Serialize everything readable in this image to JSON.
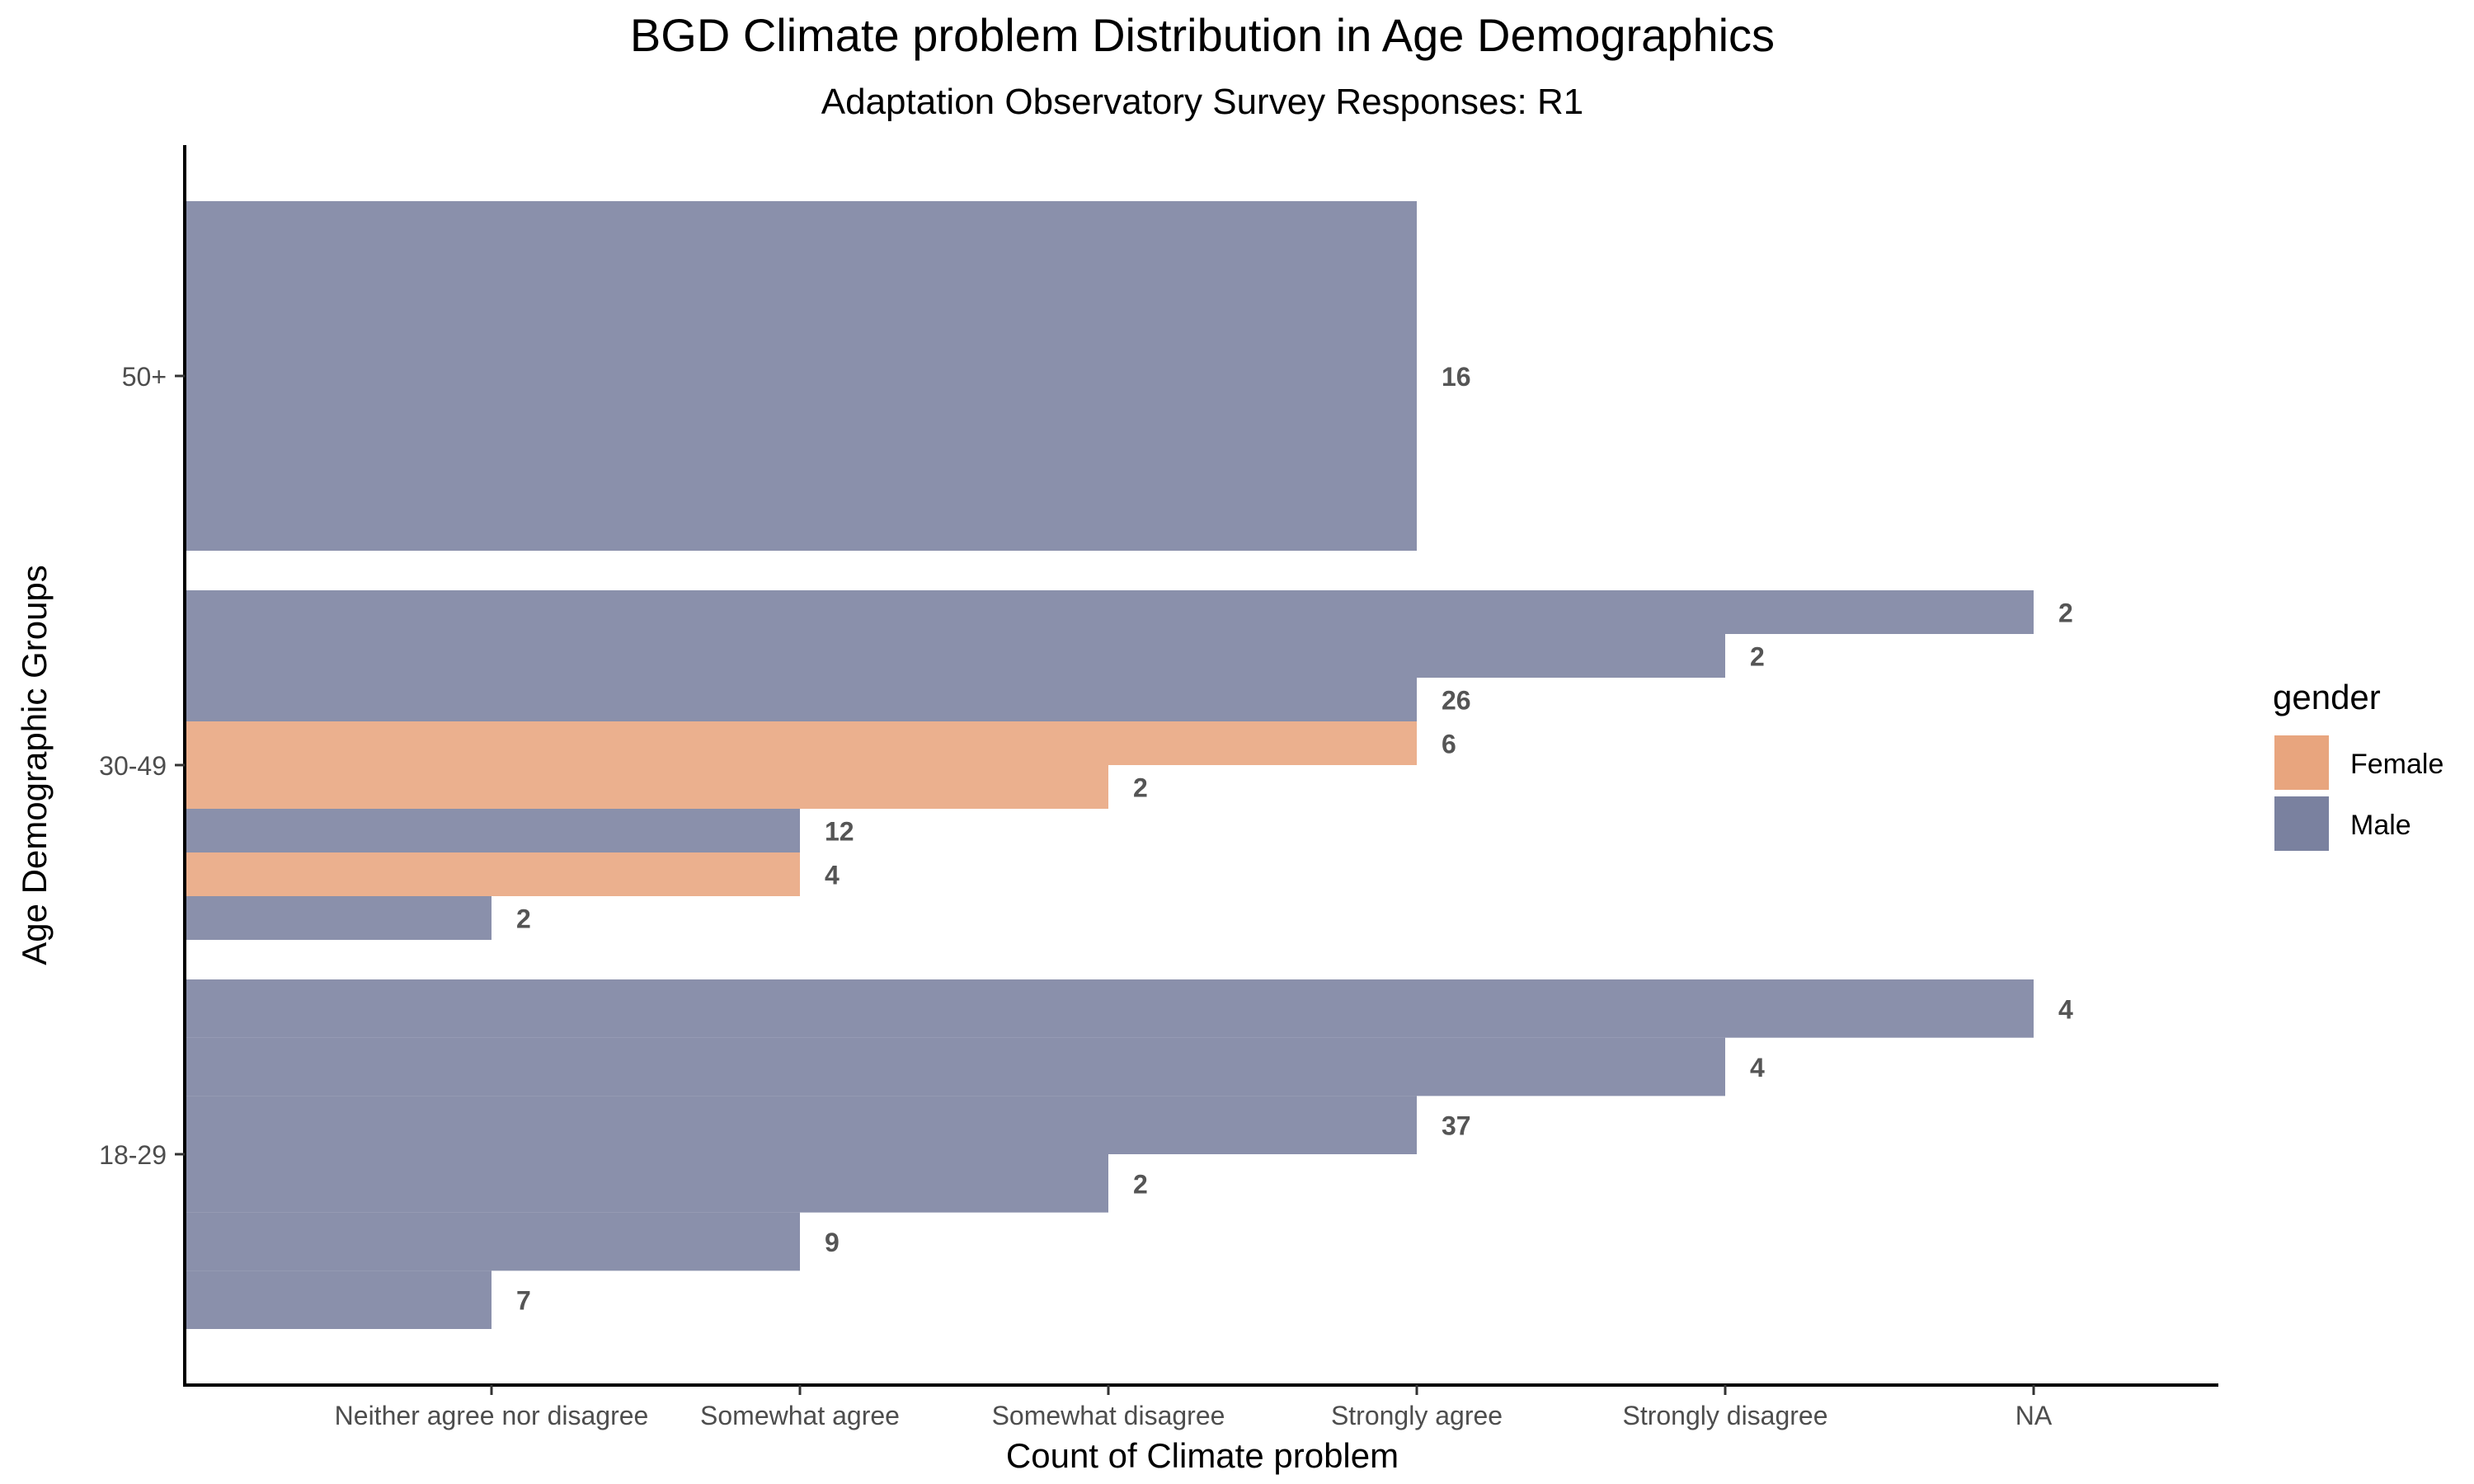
{
  "chart_data": {
    "type": "bar",
    "orientation": "horizontal",
    "title": "BGD Climate problem Distribution in Age Demographics",
    "subtitle": "Adaptation Observatory Survey Responses: R1",
    "xlabel": "Count of Climate problem",
    "ylabel": "Age Demographic Groups",
    "x_categories": [
      "Neither agree nor disagree",
      "Somewhat agree",
      "Somewhat disagree",
      "Strongly agree",
      "Strongly disagree",
      "NA"
    ],
    "y_categories": [
      "18-29",
      "30-49",
      "50+"
    ],
    "grid": false,
    "legend": {
      "title": "gender",
      "position": "right",
      "entries": [
        {
          "label": "Female",
          "color": "#E8A57E"
        },
        {
          "label": "Male",
          "color": "#7A819F"
        }
      ]
    },
    "bars": [
      {
        "group": "18-29",
        "gender": "Male",
        "response": "Neither agree nor disagree",
        "count": "7"
      },
      {
        "group": "18-29",
        "gender": "Male",
        "response": "Somewhat agree",
        "count": "9"
      },
      {
        "group": "18-29",
        "gender": "Male",
        "response": "Somewhat disagree",
        "count": "2"
      },
      {
        "group": "18-29",
        "gender": "Male",
        "response": "Strongly agree",
        "count": "37"
      },
      {
        "group": "18-29",
        "gender": "Male",
        "response": "Strongly disagree",
        "count": "4"
      },
      {
        "group": "18-29",
        "gender": "Male",
        "response": "NA",
        "count": "4"
      },
      {
        "group": "30-49",
        "gender": "Male",
        "response": "Neither agree nor disagree",
        "count": "2"
      },
      {
        "group": "30-49",
        "gender": "Female",
        "response": "Somewhat agree",
        "count": "4"
      },
      {
        "group": "30-49",
        "gender": "Male",
        "response": "Somewhat agree",
        "count": "12"
      },
      {
        "group": "30-49",
        "gender": "Female",
        "response": "Somewhat disagree",
        "count": "2"
      },
      {
        "group": "30-49",
        "gender": "Female",
        "response": "Strongly agree",
        "count": "6"
      },
      {
        "group": "30-49",
        "gender": "Male",
        "response": "Strongly agree",
        "count": "26"
      },
      {
        "group": "30-49",
        "gender": "Male",
        "response": "Strongly disagree",
        "count": "2"
      },
      {
        "group": "30-49",
        "gender": "Male",
        "response": "NA",
        "count": "2"
      },
      {
        "group": "50+",
        "gender": "Male",
        "response": "Strongly agree",
        "count": "16"
      }
    ]
  }
}
